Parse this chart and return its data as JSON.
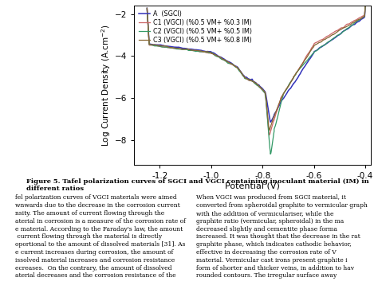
{
  "title": "",
  "xlabel": "Potential (V)",
  "ylabel": "Log Current Density (A.cm⁻²)",
  "xlim": [
    -1.3,
    -0.38
  ],
  "ylim": [
    -9.2,
    -1.6
  ],
  "yticks": [
    -8,
    -6,
    -4,
    -2
  ],
  "xticks": [
    -1.2,
    -1.0,
    -0.8,
    -0.6,
    -0.4
  ],
  "legend_labels": [
    "A  (SGCI)",
    "C1 (VGCI) (%0.5 VM+ %0.3 IM)",
    "C2 (VGCI) (%0.5 VM+ %0.5 IM)",
    "C3 (VGCI) (%0.5 VM+ %0.8 IM)"
  ],
  "colors": [
    "#3333bb",
    "#cc6666",
    "#339966",
    "#886633"
  ],
  "background": "#ffffff",
  "figure_caption": "Figure 5. Tafel polarization curves of SGCI and VGCI containing inoculant material (IM) in different ratios",
  "body_text_left": "fel polarization curves of VGCI materials were aimed\nwnwards due to the decrease in the corrosion current\nnsity. The amount of current flowing through the\naterial in corrosion is a measure of the corrosion rate of\ne material. According to the Faraday's law, the amount\n current flowing through the material is directly\noportional to the amount of dissolved materials [31]. As\ne current increases during corrosion, the amount of\nissolved material increases and corrosion resistance\necreases.  On the contrary, the amount of dissolved\naterial decreases and the corrosion resistance of the",
  "body_text_right": "When VGCI was produced from SGCI material, it\nconverted from spheroidal graphite to vermicular graph\nwith the addition of vermiculariser, while the\ngraphite ratio (vermicular, spheroidal) in the ma\ndecreased slightly and cementite phase forma\nincreased. It was thought that the decrease in the rat\ngraphite phase, which indicates cathodic behavior,\neffective in decreasing the corrosion rate of V\nmaterial. Vermicular cast irons present graphite i\nform of shorter and thicker veins, in addition to hav\nrounded contours. The irregular surface away"
}
